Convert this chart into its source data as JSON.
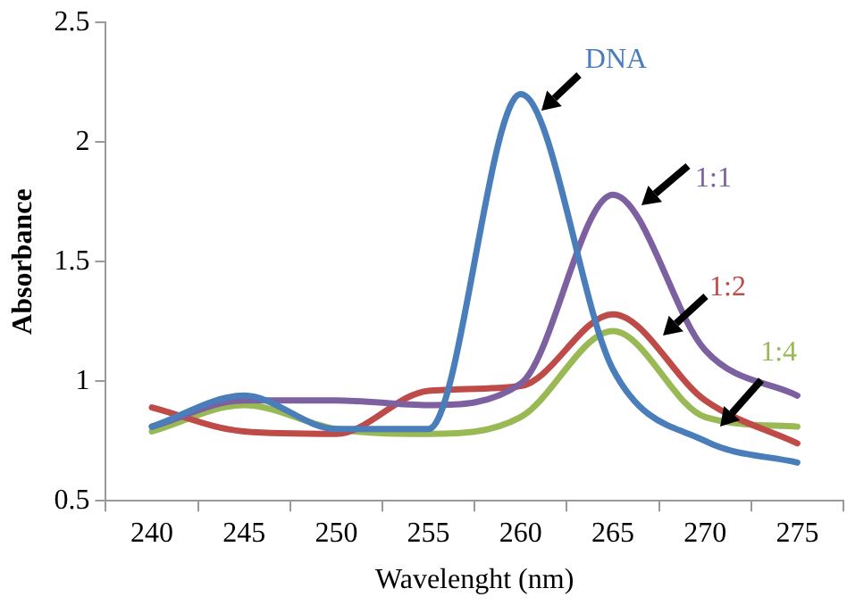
{
  "chart_data": {
    "type": "line",
    "xlabel": "Wavelenght (nm)",
    "ylabel": "Absorbance",
    "categories": [
      "240",
      "245",
      "250",
      "255",
      "260",
      "265",
      "270",
      "275"
    ],
    "ylim": [
      0.5,
      2.5
    ],
    "yticks": [
      0.5,
      1,
      1.5,
      2,
      2.5
    ],
    "grid": false,
    "legend": false,
    "marker": "none",
    "line_style": "solid",
    "series": [
      {
        "name": "DNA",
        "color": "#4a7ebb",
        "values": [
          0.81,
          0.94,
          0.8,
          0.8,
          2.2,
          1.05,
          0.75,
          0.66
        ]
      },
      {
        "name": "1:1",
        "color": "#7d60a0",
        "values": [
          0.81,
          0.92,
          0.92,
          0.9,
          0.99,
          1.78,
          1.13,
          0.94
        ]
      },
      {
        "name": "1:2",
        "color": "#be4b48",
        "values": [
          0.89,
          0.79,
          0.78,
          0.96,
          0.98,
          1.28,
          0.92,
          0.74
        ]
      },
      {
        "name": "1:4",
        "color": "#98b954",
        "values": [
          0.79,
          0.9,
          0.8,
          0.78,
          0.85,
          1.21,
          0.85,
          0.81
        ]
      }
    ]
  }
}
